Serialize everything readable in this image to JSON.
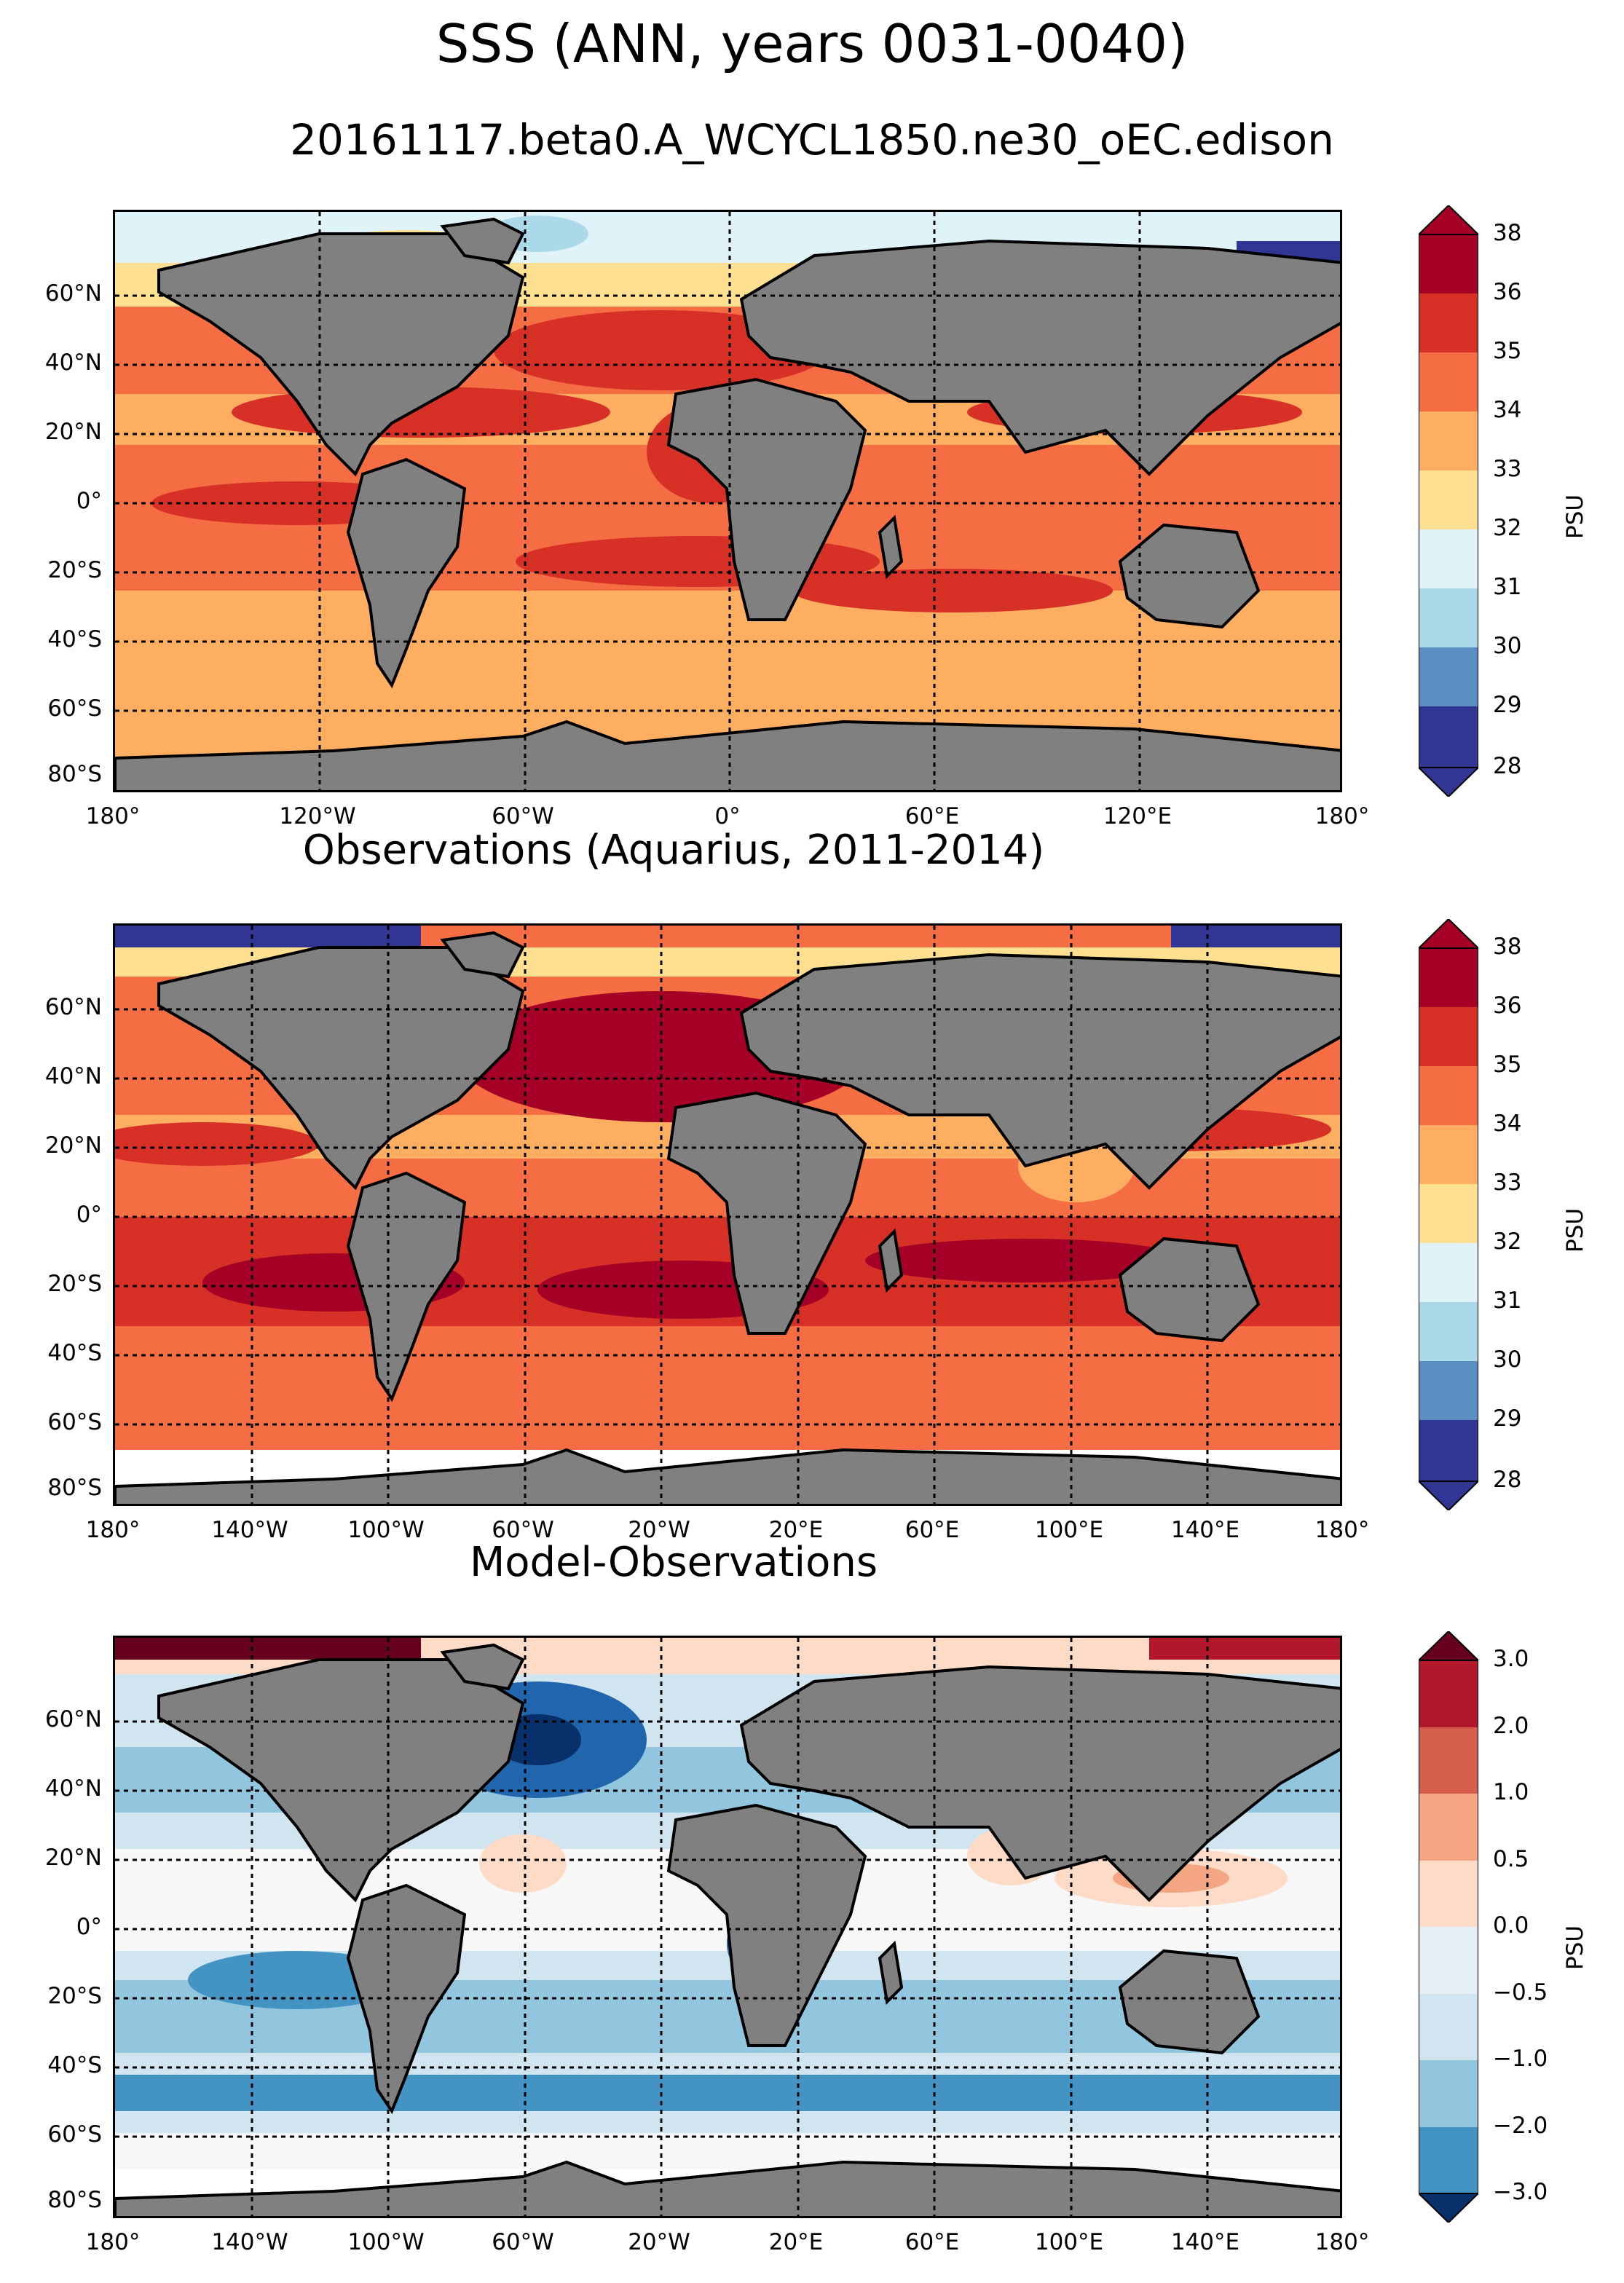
{
  "figure": {
    "title": "SSS (ANN, years 0031-0040)",
    "subtitle": "20161117.beta0.A_WCYCL1850.ne30_oEC.edison"
  },
  "colors": {
    "land": "#808080",
    "missing": "#ffffff",
    "coast": "#000000",
    "sss_cmap": [
      "#313695",
      "#5b8fc4",
      "#abd9e9",
      "#e0f3f8",
      "#fee090",
      "#fdae61",
      "#f46d43",
      "#d73027",
      "#a50026"
    ],
    "diff_cmap": [
      "#08306b",
      "#2166ac",
      "#4393c3",
      "#92c5de",
      "#d1e5f0",
      "#f7f7f7",
      "#fddbc7",
      "#f4a582",
      "#d6604d",
      "#b2182b",
      "#67001f"
    ]
  },
  "panels": [
    {
      "title": "",
      "lat_ticks": [
        "60°N",
        "40°N",
        "20°N",
        "0°",
        "20°S",
        "40°S",
        "60°S",
        "80°S"
      ],
      "lon_ticks": [
        "180°",
        "120°W",
        "60°W",
        "0°",
        "60°E",
        "120°E",
        "180°"
      ],
      "colorbar": {
        "label": "PSU",
        "ticks": [
          "38",
          "36",
          "35",
          "34",
          "33",
          "32",
          "31",
          "30",
          "29",
          "28"
        ]
      }
    },
    {
      "title": "Observations (Aquarius, 2011-2014)",
      "lat_ticks": [
        "60°N",
        "40°N",
        "20°N",
        "0°",
        "20°S",
        "40°S",
        "60°S",
        "80°S"
      ],
      "lon_ticks": [
        "180°",
        "140°W",
        "100°W",
        "60°W",
        "20°W",
        "20°E",
        "60°E",
        "100°E",
        "140°E",
        "180°"
      ],
      "colorbar": {
        "label": "PSU",
        "ticks": [
          "38",
          "36",
          "35",
          "34",
          "33",
          "32",
          "31",
          "30",
          "29",
          "28"
        ]
      }
    },
    {
      "title": "Model-Observations",
      "lat_ticks": [
        "60°N",
        "40°N",
        "20°N",
        "0°",
        "20°S",
        "40°S",
        "60°S",
        "80°S"
      ],
      "lon_ticks": [
        "180°",
        "140°W",
        "100°W",
        "60°W",
        "20°W",
        "20°E",
        "60°E",
        "100°E",
        "140°E",
        "180°"
      ],
      "colorbar": {
        "label": "PSU",
        "ticks": [
          "3.0",
          "2.0",
          "1.0",
          "0.5",
          "0.0",
          "−0.5",
          "−1.0",
          "−2.0",
          "−3.0"
        ]
      }
    }
  ]
}
